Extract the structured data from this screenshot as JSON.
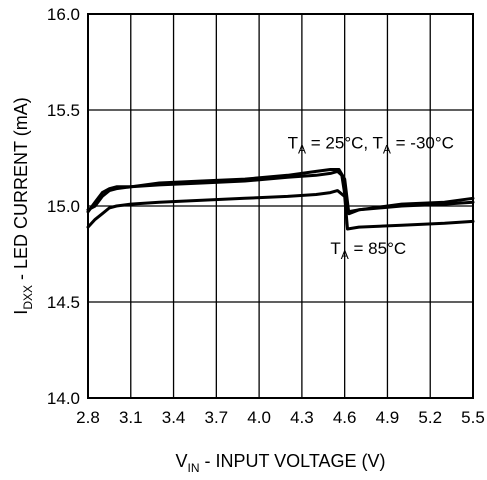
{
  "chart_data": {
    "type": "line",
    "xlabel": {
      "main": "V",
      "sub": "IN",
      "rest": " - INPUT VOLTAGE (V)"
    },
    "ylabel": {
      "main": "I",
      "sub": "DXX",
      "rest": " - LED CURRENT (mA)"
    },
    "xlim": [
      2.8,
      5.5
    ],
    "ylim": [
      14.0,
      16.0
    ],
    "xticks": [
      2.8,
      3.1,
      3.4,
      3.7,
      4.0,
      4.3,
      4.6,
      4.9,
      5.2,
      5.5
    ],
    "xtick_labels": [
      "2.8",
      "3.1",
      "3.4",
      "3.7",
      "4.0",
      "4.3",
      "4.6",
      "4.9",
      "5.2",
      "5.5"
    ],
    "yticks": [
      14.0,
      14.5,
      15.0,
      15.5,
      16.0
    ],
    "ytick_labels": [
      "14.0",
      "14.5",
      "15.0",
      "15.5",
      "16.0"
    ],
    "grid": true,
    "series": [
      {
        "name": "TA = 25°C",
        "x": [
          2.8,
          2.85,
          2.9,
          2.95,
          3.0,
          3.1,
          3.3,
          3.6,
          3.9,
          4.2,
          4.4,
          4.5,
          4.55,
          4.58,
          4.62,
          4.7,
          5.0,
          5.3,
          5.5
        ],
        "y": [
          14.97,
          15.02,
          15.07,
          15.09,
          15.1,
          15.1,
          15.11,
          15.12,
          15.13,
          15.15,
          15.16,
          15.17,
          15.18,
          15.16,
          14.97,
          14.98,
          15.0,
          15.01,
          15.02
        ]
      },
      {
        "name": "TA = -30°C",
        "x": [
          2.8,
          2.85,
          2.9,
          2.95,
          3.0,
          3.1,
          3.3,
          3.6,
          3.9,
          4.2,
          4.4,
          4.5,
          4.56,
          4.6,
          4.63,
          4.7,
          5.0,
          5.3,
          5.5
        ],
        "y": [
          14.98,
          15.0,
          15.05,
          15.08,
          15.09,
          15.1,
          15.12,
          15.13,
          15.14,
          15.16,
          15.18,
          15.19,
          15.19,
          15.14,
          14.96,
          14.98,
          15.01,
          15.02,
          15.04
        ]
      },
      {
        "name": "TA = 85°C",
        "x": [
          2.8,
          2.85,
          2.9,
          2.95,
          3.0,
          3.1,
          3.3,
          3.6,
          3.9,
          4.2,
          4.4,
          4.5,
          4.55,
          4.6,
          4.62,
          4.7,
          5.0,
          5.3,
          5.5
        ],
        "y": [
          14.89,
          14.93,
          14.96,
          14.99,
          15.0,
          15.01,
          15.02,
          15.03,
          15.04,
          15.05,
          15.06,
          15.07,
          15.08,
          15.05,
          14.88,
          14.89,
          14.9,
          14.91,
          14.92
        ]
      }
    ],
    "annotations": [
      {
        "parts": [
          {
            "t": "T"
          },
          {
            "t": "A",
            "sub": true
          },
          {
            "t": " = 25°C, T"
          },
          {
            "t": "A",
            "sub": true
          },
          {
            "t": " = -30°C"
          }
        ],
        "x": 4.2,
        "y": 15.3
      },
      {
        "parts": [
          {
            "t": "T"
          },
          {
            "t": "A",
            "sub": true
          },
          {
            "t": " = 85°C"
          }
        ],
        "x": 4.5,
        "y": 14.75
      }
    ]
  }
}
